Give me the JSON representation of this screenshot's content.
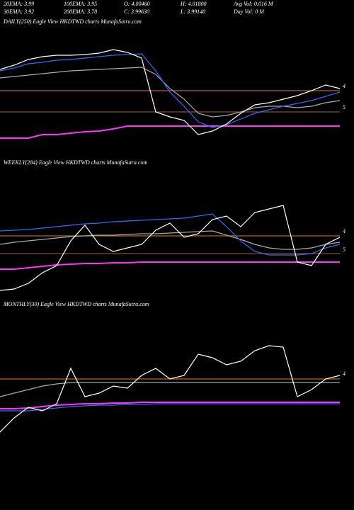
{
  "header": [
    [
      "20EMA: 3.99",
      "100EMA: 3.95",
      "O: 4.00460",
      "H: 4.01800",
      "Avg Vol: 0.016  M"
    ],
    [
      "30EMA: 3.92",
      "200EMA: 3.78",
      "C: 3.99630",
      "L: 3.99140",
      "Day Vol: 0  M"
    ]
  ],
  "chart_data": [
    {
      "type": "line",
      "title": "DAILY(250) Eagle  View  HKDTWD charts MunafaSutra.com",
      "ylim": [
        3.52,
        4.2
      ],
      "annotations": [
        {
          "label": "4",
          "value": 3.872
        },
        {
          "label": "5",
          "value": 3.752
        }
      ],
      "series": [
        {
          "color": "#b5651d",
          "values": [
            3.848,
            3.848,
            3.848,
            3.848,
            3.848,
            3.848,
            3.848,
            3.848,
            3.848,
            3.848,
            3.848,
            3.848,
            3.848,
            3.848,
            3.848,
            3.848,
            3.848,
            3.848,
            3.848,
            3.848,
            3.848,
            3.848,
            3.848,
            3.848,
            3.848
          ]
        },
        {
          "color": "#8b4a1a",
          "values": [
            3.728,
            3.728,
            3.728,
            3.728,
            3.728,
            3.728,
            3.728,
            3.728,
            3.728,
            3.728,
            3.728,
            3.728,
            3.728,
            3.728,
            3.728,
            3.728,
            3.728,
            3.728,
            3.728,
            3.728,
            3.728,
            3.728,
            3.728,
            3.728,
            3.728
          ]
        },
        {
          "color": "#ff33ff",
          "values": [
            3.58,
            3.58,
            3.58,
            3.6,
            3.6,
            3.608,
            3.616,
            3.62,
            3.632,
            3.648,
            3.648,
            3.648,
            3.648,
            3.648,
            3.648,
            3.648,
            3.648,
            3.648,
            3.648,
            3.648,
            3.648,
            3.648,
            3.648,
            3.648,
            3.648
          ]
        },
        {
          "color": "#aaaaaa",
          "values": [
            3.92,
            3.928,
            3.936,
            3.944,
            3.952,
            3.96,
            3.964,
            3.968,
            3.972,
            3.976,
            3.98,
            3.94,
            3.86,
            3.8,
            3.72,
            3.7,
            3.708,
            3.728,
            3.752,
            3.76,
            3.76,
            3.752,
            3.76,
            3.78,
            3.792
          ]
        },
        {
          "color": "#2f6bff",
          "values": [
            3.96,
            3.976,
            4.0,
            4.008,
            4.02,
            4.024,
            4.032,
            4.04,
            4.048,
            4.052,
            4.056,
            3.96,
            3.84,
            3.76,
            3.672,
            3.64,
            3.656,
            3.688,
            3.72,
            3.74,
            3.76,
            3.776,
            3.792,
            3.816,
            3.84
          ]
        },
        {
          "color": "#ffffff",
          "values": [
            3.968,
            3.992,
            4.024,
            4.04,
            4.048,
            4.048,
            4.052,
            4.06,
            4.08,
            4.064,
            4.032,
            3.728,
            3.7,
            3.68,
            3.6,
            3.62,
            3.66,
            3.72,
            3.768,
            3.78,
            3.8,
            3.82,
            3.848,
            3.88,
            3.86
          ]
        }
      ]
    },
    {
      "type": "line",
      "title": "WEEKLY(284) Eagle  View  HKDTWD charts MunafaSutra.com",
      "ylim": [
        3.6,
        4.2
      ],
      "annotations": [
        {
          "label": "4",
          "value": 3.972
        },
        {
          "label": "5",
          "value": 3.868
        }
      ],
      "series": [
        {
          "color": "#b5651d",
          "values": [
            3.948,
            3.948,
            3.948,
            3.948,
            3.948,
            3.948,
            3.948,
            3.948,
            3.948,
            3.948,
            3.948,
            3.948,
            3.948,
            3.948,
            3.948,
            3.948,
            3.948,
            3.948,
            3.948,
            3.948,
            3.948,
            3.948,
            3.948,
            3.948,
            3.948
          ]
        },
        {
          "color": "#8b4a1a",
          "values": [
            3.848,
            3.848,
            3.848,
            3.848,
            3.848,
            3.848,
            3.848,
            3.848,
            3.848,
            3.848,
            3.848,
            3.848,
            3.848,
            3.848,
            3.848,
            3.848,
            3.848,
            3.848,
            3.848,
            3.848,
            3.848,
            3.848,
            3.848,
            3.848,
            3.848
          ]
        },
        {
          "color": "#ff33ff",
          "values": [
            3.76,
            3.76,
            3.768,
            3.776,
            3.784,
            3.788,
            3.792,
            3.792,
            3.796,
            3.796,
            3.8,
            3.8,
            3.8,
            3.8,
            3.8,
            3.8,
            3.8,
            3.8,
            3.8,
            3.8,
            3.8,
            3.8,
            3.8,
            3.8,
            3.8
          ]
        },
        {
          "color": "#aaaaaa",
          "values": [
            3.9,
            3.912,
            3.92,
            3.928,
            3.936,
            3.944,
            3.948,
            3.952,
            3.952,
            3.956,
            3.96,
            3.96,
            3.964,
            3.968,
            3.972,
            3.976,
            3.952,
            3.928,
            3.9,
            3.88,
            3.872,
            3.872,
            3.88,
            3.9,
            3.912
          ]
        },
        {
          "color": "#2f6bff",
          "values": [
            3.976,
            3.98,
            3.984,
            3.992,
            4.0,
            4.008,
            4.016,
            4.02,
            4.028,
            4.032,
            4.036,
            4.04,
            4.044,
            4.048,
            4.06,
            4.072,
            4.0,
            3.92,
            3.86,
            3.84,
            3.84,
            3.84,
            3.848,
            3.88,
            3.9
          ]
        },
        {
          "color": "#ffffff",
          "values": [
            3.64,
            3.648,
            3.68,
            3.74,
            3.78,
            3.92,
            4.008,
            3.9,
            3.86,
            3.88,
            3.9,
            3.98,
            4.02,
            3.94,
            3.96,
            4.04,
            4.06,
            4.0,
            4.08,
            4.1,
            4.12,
            3.8,
            3.78,
            3.9,
            3.94
          ]
        }
      ]
    },
    {
      "type": "line",
      "title": "MONTHLY(30) Eagle  View  HKDTWD charts MunafaSutra.com",
      "ylim": [
        3.56,
        4.2
      ],
      "annotations": [
        {
          "label": "4",
          "value": 3.968
        }
      ],
      "series": [
        {
          "color": "#b5651d",
          "values": [
            3.94,
            3.94,
            3.94,
            3.94,
            3.94,
            3.94,
            3.94,
            3.94,
            3.94,
            3.94,
            3.94,
            3.94,
            3.94,
            3.94,
            3.94,
            3.94,
            3.94,
            3.94,
            3.94,
            3.94,
            3.94,
            3.94,
            3.94,
            3.94,
            3.94
          ]
        },
        {
          "color": "#aaaaaa",
          "values": [
            3.84,
            3.86,
            3.88,
            3.9,
            3.912,
            3.92,
            3.92,
            3.92,
            3.92,
            3.92,
            3.92,
            3.92,
            3.92,
            3.92,
            3.92,
            3.92,
            3.92,
            3.92,
            3.92,
            3.92,
            3.92,
            3.92,
            3.92,
            3.92,
            3.92
          ]
        },
        {
          "color": "#ff33ff",
          "values": [
            3.772,
            3.772,
            3.776,
            3.784,
            3.792,
            3.796,
            3.8,
            3.8,
            3.804,
            3.804,
            3.808,
            3.808,
            3.808,
            3.808,
            3.808,
            3.808,
            3.808,
            3.808,
            3.808,
            3.808,
            3.808,
            3.808,
            3.808,
            3.808,
            3.808
          ]
        },
        {
          "color": "#2f6bff",
          "values": [
            3.76,
            3.76,
            3.76,
            3.768,
            3.776,
            3.784,
            3.788,
            3.792,
            3.792,
            3.796,
            3.796,
            3.8,
            3.8,
            3.8,
            3.8,
            3.8,
            3.8,
            3.8,
            3.8,
            3.8,
            3.8,
            3.8,
            3.8,
            3.8,
            3.8
          ]
        },
        {
          "color": "#ffffff",
          "values": [
            3.64,
            3.72,
            3.78,
            3.76,
            3.8,
            4.0,
            3.84,
            3.86,
            3.9,
            3.888,
            3.96,
            4.0,
            3.94,
            3.96,
            4.08,
            4.06,
            4.02,
            4.04,
            4.1,
            4.128,
            4.12,
            3.84,
            3.88,
            3.94,
            3.96
          ]
        }
      ]
    }
  ]
}
